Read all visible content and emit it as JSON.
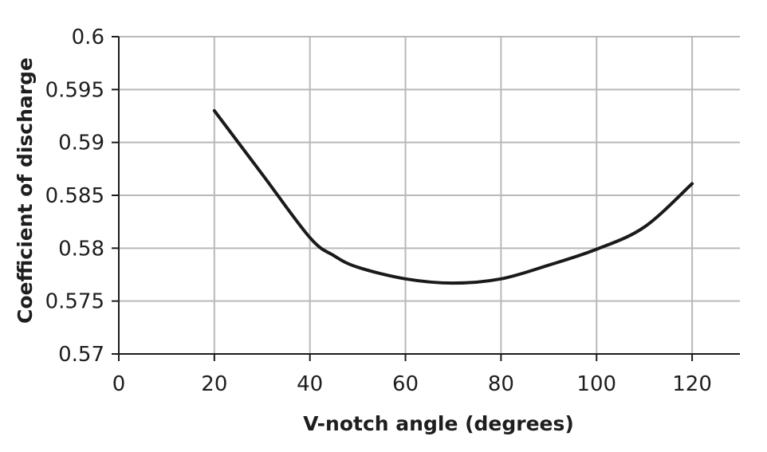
{
  "chart_data": {
    "type": "line",
    "xlabel": "V-notch angle (degrees)",
    "ylabel": "Coefficient of discharge",
    "xlim": [
      0,
      130
    ],
    "ylim": [
      0.57,
      0.6
    ],
    "x_ticks": [
      0,
      20,
      40,
      60,
      80,
      100,
      120
    ],
    "x_tick_labels": [
      "0",
      "20",
      "40",
      "60",
      "80",
      "100",
      "120"
    ],
    "y_ticks": [
      0.57,
      0.575,
      0.58,
      0.585,
      0.59,
      0.595,
      0.6
    ],
    "y_tick_labels": [
      "0.57",
      "0.575",
      "0.58",
      "0.585",
      "0.59",
      "0.595",
      "0.6"
    ],
    "grid": true,
    "colors": {
      "line": "#1a1a1a",
      "grid": "#b9b9b9",
      "axis": "#1c1c1c"
    },
    "series": [
      {
        "x": [
          20,
          30,
          40,
          45,
          50,
          60,
          70,
          80,
          90,
          100,
          110,
          120
        ],
        "y": [
          0.593,
          0.587,
          0.581,
          0.5793,
          0.5782,
          0.5771,
          0.5767,
          0.5771,
          0.5784,
          0.5799,
          0.582,
          0.5861
        ]
      }
    ]
  }
}
